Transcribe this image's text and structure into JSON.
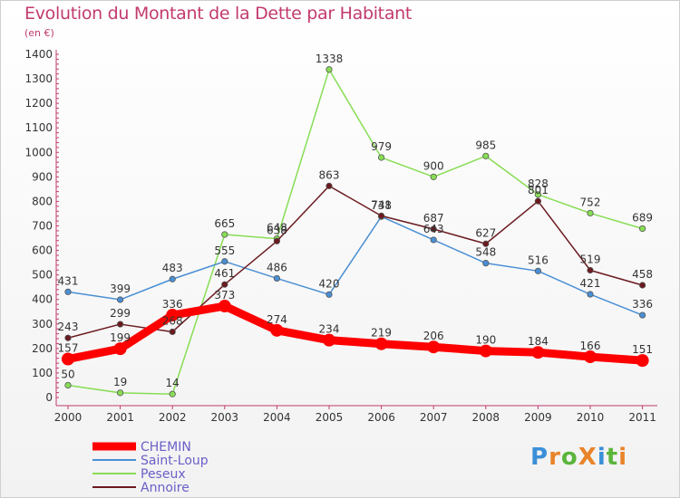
{
  "title": "Evolution du Montant de la Dette par Habitant",
  "subtitle": "(en €)",
  "logo_text": "ProXiti",
  "chart_data": {
    "type": "line",
    "title": "Evolution du Montant de la Dette par Habitant",
    "subtitle": "(en €)",
    "xlabel": "",
    "ylabel": "",
    "x": [
      "2000",
      "2001",
      "2002",
      "2003",
      "2004",
      "2005",
      "2006",
      "2007",
      "2008",
      "2009",
      "2010",
      "2011"
    ],
    "ylim": [
      0,
      1400
    ],
    "yticks": [
      0,
      100,
      200,
      300,
      400,
      500,
      600,
      700,
      800,
      900,
      1000,
      1100,
      1200,
      1300,
      1400
    ],
    "grid": false,
    "legend_position": "bottom-left",
    "series": [
      {
        "name": "CHEMIN",
        "color": "#ff0000",
        "values": [
          157,
          199,
          336,
          373,
          274,
          234,
          219,
          206,
          190,
          184,
          166,
          151
        ]
      },
      {
        "name": "Saint-Loup",
        "color": "#4a8fd4",
        "values": [
          431,
          399,
          483,
          555,
          486,
          420,
          738,
          643,
          548,
          516,
          421,
          336
        ]
      },
      {
        "name": "Peseux",
        "color": "#88dd55",
        "values": [
          50,
          19,
          14,
          665,
          648,
          1338,
          979,
          900,
          985,
          828,
          752,
          689
        ]
      },
      {
        "name": "Annoire",
        "color": "#6b1a1f",
        "values": [
          243,
          299,
          268,
          461,
          638,
          863,
          741,
          687,
          627,
          801,
          519,
          458
        ]
      }
    ]
  }
}
